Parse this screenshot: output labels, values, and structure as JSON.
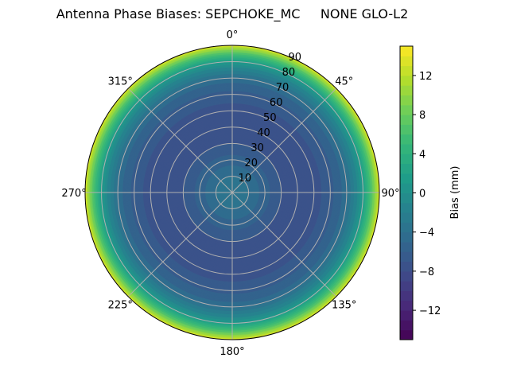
{
  "chart_data": {
    "type": "heatmap",
    "projection": "polar",
    "title": "Antenna Phase Biases: SEPCHOKE_MC     NONE GLO-L2",
    "theta_zero": "N",
    "theta_direction": "clockwise",
    "angle_ticks": [
      "0°",
      "45°",
      "90°",
      "135°",
      "180°",
      "225°",
      "270°",
      "315°"
    ],
    "angle_tick_values": [
      0,
      45,
      90,
      135,
      180,
      225,
      270,
      315
    ],
    "radial_ticks": [
      "10",
      "20",
      "30",
      "40",
      "50",
      "60",
      "70",
      "80",
      "90"
    ],
    "radial_tick_values": [
      10,
      20,
      30,
      40,
      50,
      60,
      70,
      80,
      90
    ],
    "rlim": [
      0,
      90
    ],
    "grid": true,
    "colormap": "viridis",
    "colorbar": {
      "label": "Bias (mm)",
      "range": [
        -15,
        15
      ],
      "levels": 30,
      "ticks": [
        "−12",
        "−8",
        "−4",
        "0",
        "4",
        "8",
        "12"
      ],
      "tick_values": [
        -12,
        -8,
        -4,
        0,
        4,
        8,
        12
      ]
    },
    "radial_profile": {
      "zenith": [
        0,
        10,
        20,
        30,
        40,
        50,
        60,
        70,
        75,
        80,
        85,
        90
      ],
      "bias_mm": [
        -3,
        -4,
        -5.5,
        -7,
        -7.5,
        -7.5,
        -6.5,
        -4.5,
        -2,
        1,
        6,
        13
      ]
    }
  }
}
